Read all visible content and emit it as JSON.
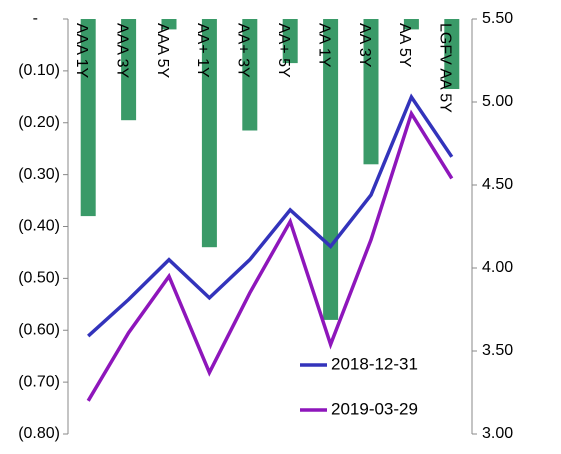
{
  "chart_data": {
    "type": "bar+line",
    "categories": [
      "AAA 1Y",
      "AAA 3Y",
      "AAA 5Y",
      "AA+ 1Y",
      "AA+ 3Y",
      "AA+ 5Y",
      "AA 1Y",
      "AA 3Y",
      "AA 5Y",
      "LGFV AA 5Y"
    ],
    "bar_series": {
      "axis": "left",
      "color": "#3a9a68",
      "values": [
        -0.38,
        -0.195,
        -0.02,
        -0.44,
        -0.215,
        -0.085,
        -0.58,
        -0.28,
        -0.02,
        -0.135
      ]
    },
    "line_series": [
      {
        "name": "2018-12-31",
        "color": "#3333bb",
        "axis": "right",
        "values": [
          3.59,
          3.81,
          4.05,
          3.82,
          4.05,
          4.35,
          4.13,
          4.44,
          5.03,
          4.67
        ]
      },
      {
        "name": "2019-03-29",
        "color": "#8e16bb",
        "axis": "right",
        "values": [
          3.2,
          3.61,
          3.95,
          3.37,
          3.85,
          4.28,
          3.54,
          4.17,
          4.93,
          4.54
        ]
      }
    ],
    "left_axis": {
      "ylim": [
        -0.8,
        0
      ],
      "ticks": [
        0,
        -0.1,
        -0.2,
        -0.3,
        -0.4,
        -0.5,
        -0.6,
        -0.7,
        -0.8
      ],
      "tick_labels": [
        "-",
        "(0.10)",
        "(0.20)",
        "(0.30)",
        "(0.40)",
        "(0.50)",
        "(0.60)",
        "(0.70)",
        "(0.80)"
      ]
    },
    "right_axis": {
      "ylim": [
        3.0,
        5.5
      ],
      "ticks": [
        5.5,
        5.0,
        4.5,
        4.0,
        3.5,
        3.0
      ],
      "tick_labels": [
        "5.50",
        "5.00",
        "4.50",
        "4.00",
        "3.50",
        "3.00"
      ]
    },
    "legend_position": "bottom-right",
    "grid": false
  }
}
